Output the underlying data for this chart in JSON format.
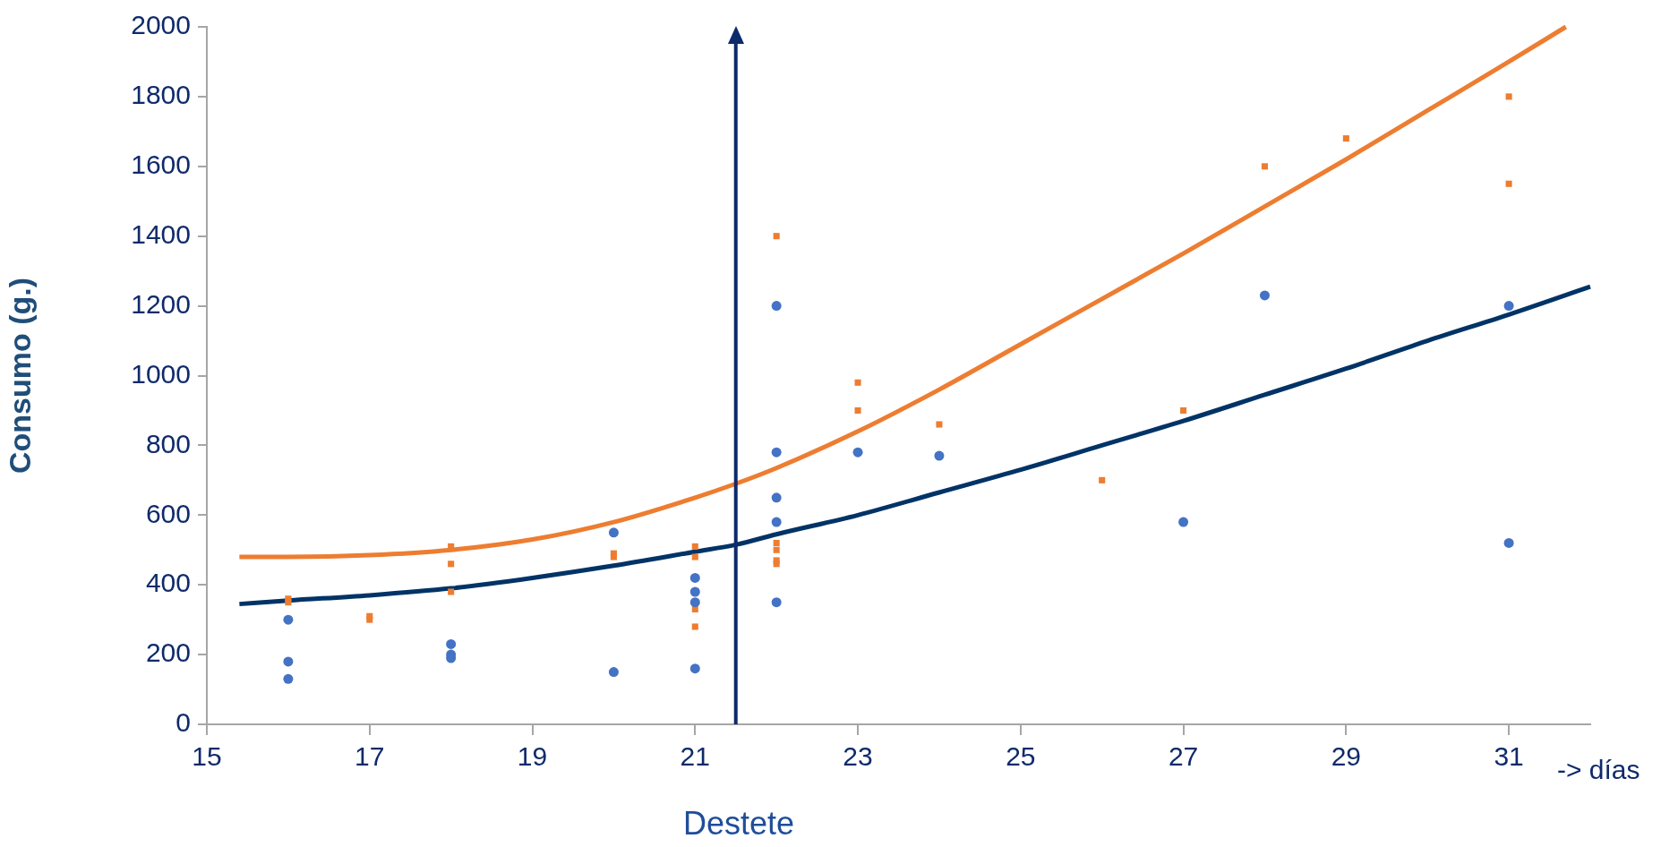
{
  "chart_data": {
    "type": "scatter",
    "xlabel": "-> días",
    "ylabel": "Consumo (g.)",
    "xlim": [
      15,
      32
    ],
    "xticks": [
      15,
      17,
      19,
      21,
      23,
      25,
      27,
      29,
      31
    ],
    "ylim": [
      0,
      2000
    ],
    "yticks": [
      0,
      200,
      400,
      600,
      800,
      {
        "value": 1000,
        "label": "1000"
      },
      {
        "value": 1200,
        "label": "1200"
      },
      {
        "value": 1400,
        "label": "1400"
      },
      {
        "value": 1600,
        "label": "1600"
      },
      {
        "value": 1800,
        "label": "1800"
      },
      {
        "value": 2000,
        "label": "2000"
      }
    ],
    "grid": false,
    "legend": false,
    "series": [
      {
        "marker": "circle",
        "color": "#4472c4",
        "x": [
          16,
          16,
          16,
          18,
          18,
          18,
          20,
          20,
          21,
          21,
          21,
          21,
          22,
          22,
          22,
          22,
          22,
          23,
          24,
          27,
          28,
          31,
          31
        ],
        "values": [
          300,
          180,
          130,
          230,
          200,
          190,
          550,
          150,
          420,
          380,
          350,
          160,
          1200,
          780,
          650,
          580,
          350,
          780,
          770,
          580,
          1230,
          1200,
          520
        ]
      },
      {
        "marker": "square",
        "color": "#ed7d31",
        "x": [
          16,
          16,
          17,
          17,
          18,
          18,
          18,
          20,
          20,
          21,
          21,
          21,
          21,
          22,
          22,
          22,
          22,
          22,
          23,
          23,
          24,
          26,
          27,
          28,
          29,
          31,
          31
        ],
        "values": [
          360,
          350,
          310,
          300,
          510,
          460,
          380,
          490,
          480,
          510,
          480,
          330,
          280,
          1400,
          520,
          500,
          470,
          460,
          980,
          900,
          860,
          700,
          900,
          1600,
          1680,
          1800,
          1550
        ]
      },
      {
        "type": "line",
        "marker": "none",
        "color": "#ed7d31",
        "x": [
          15.4,
          16,
          17,
          18,
          19,
          20,
          21,
          21.5,
          22,
          23,
          24,
          25,
          26,
          27,
          28,
          29,
          30,
          31,
          31.7
        ],
        "values": [
          480,
          480,
          485,
          500,
          530,
          580,
          650,
          690,
          735,
          840,
          960,
          1090,
          1220,
          1350,
          1485,
          1620,
          1760,
          1900,
          2000
        ]
      },
      {
        "type": "line",
        "marker": "none",
        "color": "#003366",
        "x": [
          15.4,
          16,
          17,
          18,
          19,
          20,
          21,
          21.5,
          22,
          23,
          24,
          25,
          26,
          27,
          28,
          29,
          30,
          31,
          32
        ],
        "values": [
          345,
          355,
          370,
          390,
          420,
          455,
          495,
          515,
          545,
          600,
          665,
          730,
          800,
          870,
          945,
          1020,
          1100,
          1175,
          1255
        ]
      }
    ],
    "ref_lines": [
      {
        "axis": "x",
        "value": 21.5,
        "color": "#0d2a6b"
      }
    ],
    "annotations": [
      "Destete"
    ]
  }
}
